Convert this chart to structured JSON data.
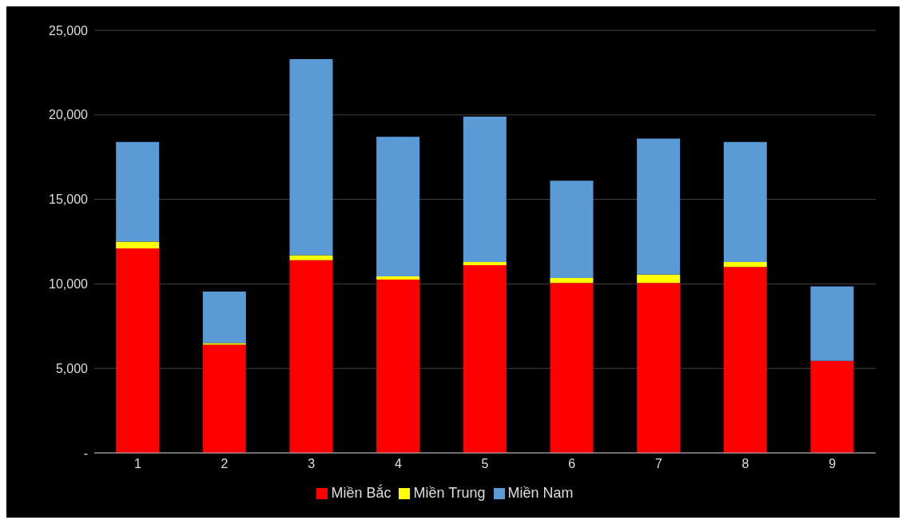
{
  "chart_data": {
    "type": "bar",
    "stacked": true,
    "categories": [
      "1",
      "2",
      "3",
      "4",
      "5",
      "6",
      "7",
      "8",
      "9"
    ],
    "series": [
      {
        "name": "Miền Bắc",
        "color": "#ff0000",
        "values": [
          12100,
          6400,
          11400,
          10250,
          11100,
          10050,
          10050,
          11000,
          5450
        ]
      },
      {
        "name": "Miền Trung",
        "color": "#ffff00",
        "values": [
          400,
          100,
          300,
          200,
          200,
          300,
          500,
          300,
          0
        ]
      },
      {
        "name": "Miền Nam",
        "color": "#5b9bd5",
        "values": [
          5900,
          3050,
          11600,
          8250,
          8600,
          5750,
          8050,
          7100,
          4400
        ]
      }
    ],
    "ylim": [
      0,
      25000
    ],
    "yticks": [
      {
        "value": 0,
        "label": "-"
      },
      {
        "value": 5000,
        "label": "5,000"
      },
      {
        "value": 10000,
        "label": "10,000"
      },
      {
        "value": 15000,
        "label": "15,000"
      },
      {
        "value": 20000,
        "label": "20,000"
      },
      {
        "value": 25000,
        "label": "25,000"
      }
    ],
    "grid": "y",
    "legend": "bottom"
  }
}
